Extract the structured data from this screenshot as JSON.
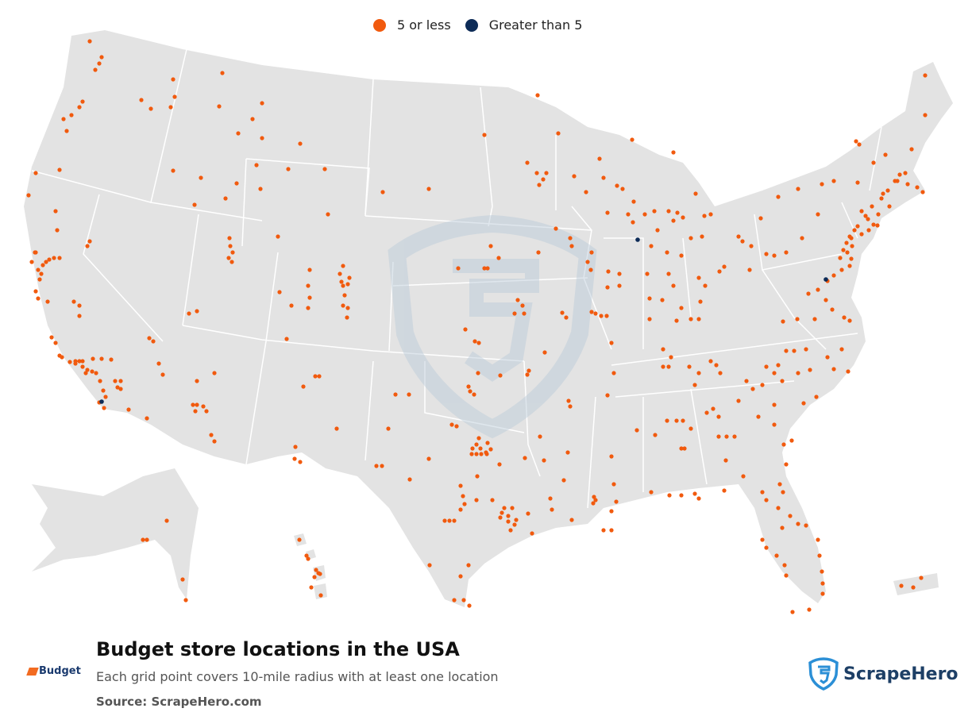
{
  "legend": {
    "items": [
      {
        "label": "5 or less",
        "color": "#f15a0e"
      },
      {
        "label": "Greater than 5",
        "color": "#0d2b57"
      }
    ]
  },
  "title": "Budget store locations in the USA",
  "subtitle": "Each grid point covers 10-mile radius with at least one location",
  "source": "Source: ScrapeHero.com",
  "brand_logo_text": "Budget",
  "scrapehero_logo_text": "ScrapeHero",
  "colors": {
    "land": "#e3e3e3",
    "borders": "#ffffff",
    "low": "#f15a0e",
    "high": "#0d2b57",
    "watermark": "#c9d6e0"
  },
  "map_data": {
    "type": "dot-map",
    "region": "USA",
    "categories": [
      "5 or less",
      "Greater than 5"
    ],
    "high_density_areas": [
      "Chicago",
      "San Diego",
      "Washington DC"
    ]
  }
}
